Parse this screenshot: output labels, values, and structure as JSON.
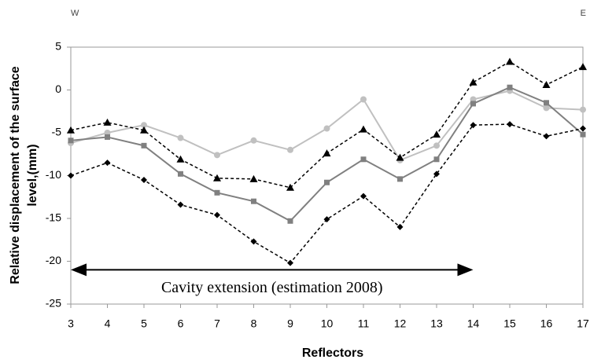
{
  "chart_data": {
    "type": "line",
    "xlabel": "Reflectors",
    "ylabel": [
      "Relative displacement of the surface",
      "level,(mm)"
    ],
    "corner_labels": [
      "W",
      "E"
    ],
    "x": [
      3,
      4,
      5,
      6,
      7,
      8,
      9,
      10,
      11,
      12,
      13,
      14,
      15,
      16,
      17
    ],
    "xlim": [
      3,
      17
    ],
    "xticks": [
      3,
      4,
      5,
      6,
      7,
      8,
      9,
      10,
      11,
      12,
      13,
      14,
      15,
      16,
      17
    ],
    "ylim": [
      -25,
      5
    ],
    "yticks": [
      -25,
      -20,
      -15,
      -10,
      -5,
      0,
      5
    ],
    "series": [
      {
        "color": "#c0c0c0",
        "marker": "circle",
        "dash": false,
        "values": [
          -6.2,
          -5,
          -4.1,
          -5.6,
          -7.6,
          -5.9,
          -7,
          -4.5,
          -1.1,
          -8.2,
          -6.5,
          -1.1,
          -0.1,
          -2.1,
          -2.3
        ]
      },
      {
        "color": "#808080",
        "marker": "square",
        "dash": false,
        "values": [
          -5.9,
          -5.5,
          -6.5,
          -9.8,
          -12,
          -13,
          -15.3,
          -10.8,
          -8.1,
          -10.4,
          -8.1,
          -1.6,
          0.3,
          -1.5,
          -5.2
        ]
      },
      {
        "color": "#000000",
        "marker": "triangle",
        "dash": true,
        "values": [
          -4.7,
          -3.8,
          -4.7,
          -8.1,
          -10.3,
          -10.4,
          -11.4,
          -7.4,
          -4.6,
          -7.9,
          -5.2,
          0.9,
          3.3,
          0.6,
          2.7
        ]
      },
      {
        "color": "#000000",
        "marker": "diamond",
        "dash": true,
        "values": [
          -10,
          -8.5,
          -10.5,
          -13.4,
          -14.6,
          -17.7,
          -20.2,
          -15.1,
          -12.4,
          -16,
          -9.8,
          -4.1,
          -4,
          -5.4,
          -4.5
        ]
      }
    ],
    "annotation": {
      "text": "Cavity extension (estimation 2008)",
      "x": [
        3,
        14
      ],
      "y": -21
    }
  }
}
